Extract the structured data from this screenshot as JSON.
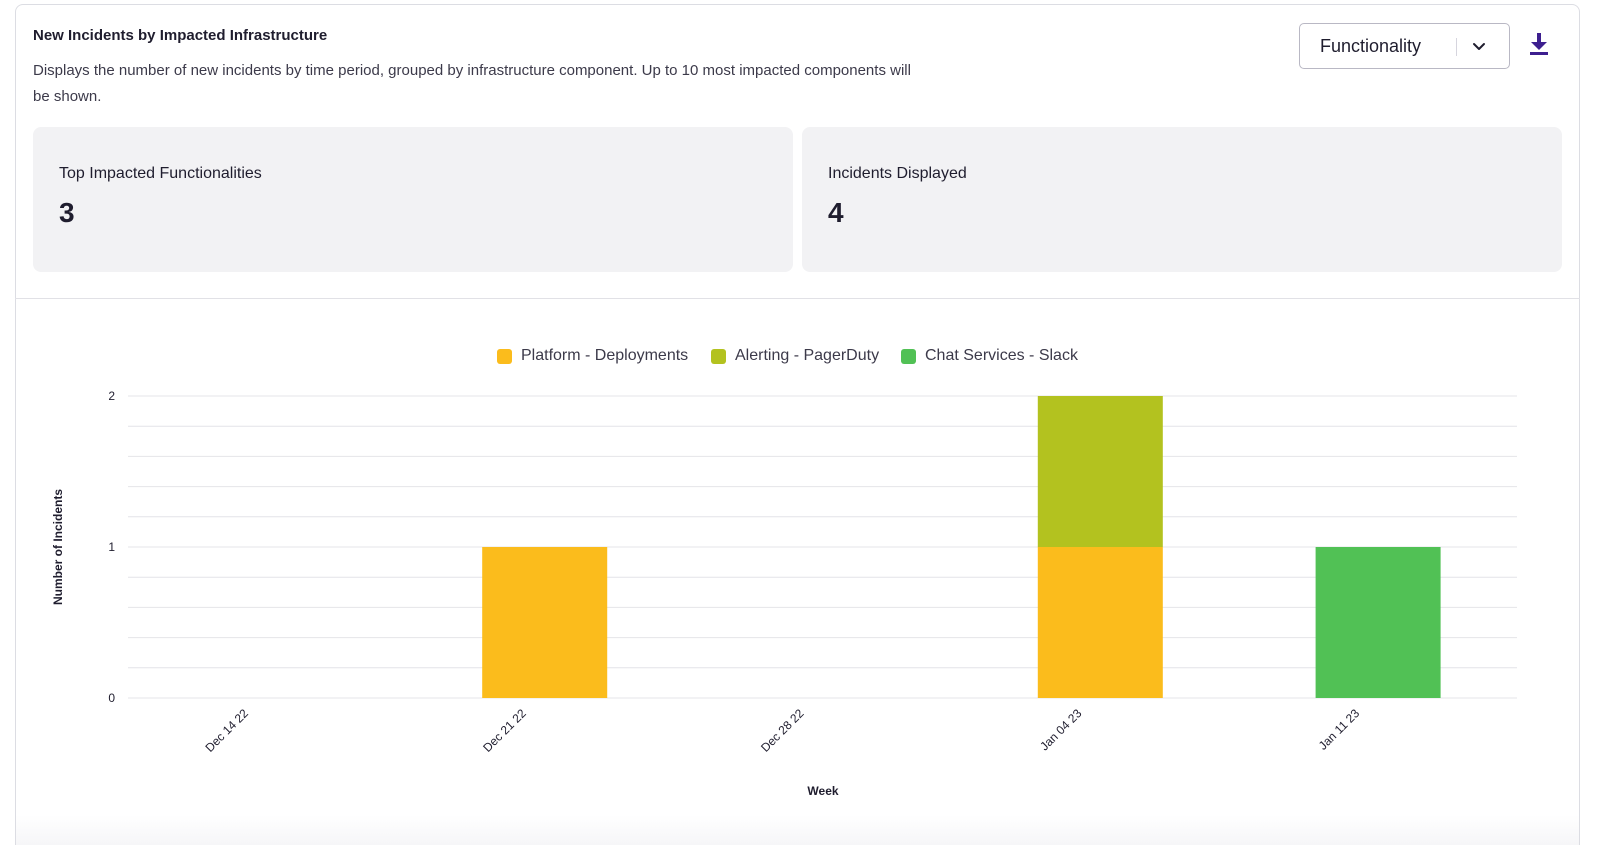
{
  "header": {
    "title": "New Incidents by Impacted Infrastructure",
    "description": "Displays the number of new incidents by time period, grouped by infrastructure component. Up to 10 most impacted components will be shown."
  },
  "controls": {
    "group_by": "Functionality",
    "download_icon": "download-icon",
    "chevron_icon": "chevron-down-icon"
  },
  "stats": [
    {
      "label": "Top Impacted Functionalities",
      "value": "3"
    },
    {
      "label": "Incidents Displayed",
      "value": "4"
    }
  ],
  "colors": {
    "accent": "#3d1f8f",
    "grid": "#e4e4e8"
  },
  "chart_data": {
    "type": "bar",
    "stacked": true,
    "title": "",
    "xlabel": "Week",
    "ylabel": "Number of Incidents",
    "ylim": [
      0,
      2
    ],
    "yticks": [
      0,
      1,
      2
    ],
    "grid": true,
    "legend_position": "top-center",
    "categories": [
      "Dec 14 22",
      "Dec 21 22",
      "Dec 28 22",
      "Jan 04 23",
      "Jan 11 23"
    ],
    "series": [
      {
        "name": "Platform - Deployments",
        "color": "#fbbc1c",
        "values": [
          0,
          1,
          0,
          1,
          0
        ]
      },
      {
        "name": "Alerting - PagerDuty",
        "color": "#b3c21f",
        "values": [
          0,
          0,
          0,
          1,
          0
        ]
      },
      {
        "name": "Chat Services - Slack",
        "color": "#51c155",
        "values": [
          0,
          0,
          0,
          0,
          1
        ]
      }
    ]
  }
}
